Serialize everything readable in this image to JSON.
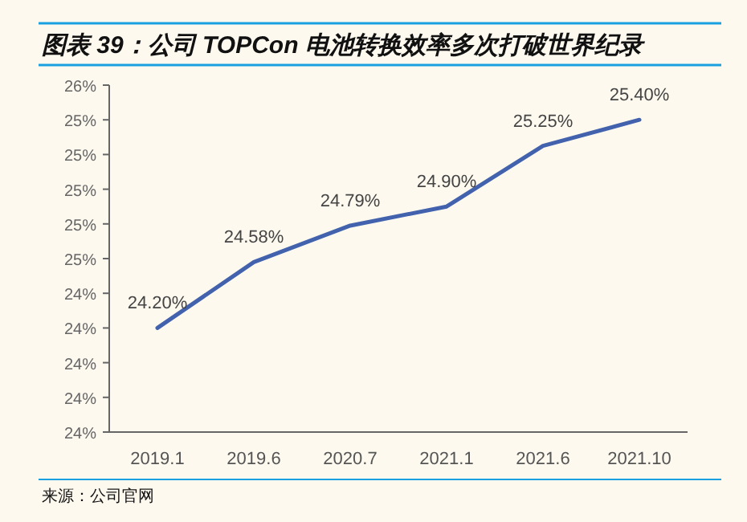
{
  "chart_data": {
    "type": "line",
    "title": "图表 39：公司 TOPCon 电池转换效率多次打破世界纪录",
    "categories": [
      "2019.1",
      "2019.6",
      "2020.7",
      "2021.1",
      "2021.6",
      "2021.10"
    ],
    "series": [
      {
        "color": "#4262ad",
        "values": [
          24.2,
          24.58,
          24.79,
          24.9,
          25.25,
          25.4
        ],
        "value_labels": [
          "24.20%",
          "24.58%",
          "24.79%",
          "24.90%",
          "25.25%",
          "25.40%"
        ]
      }
    ],
    "ylim": [
      23.6,
      25.6
    ],
    "yticks": [
      {
        "value": 23.6,
        "label": "24%"
      },
      {
        "value": 23.8,
        "label": "24%"
      },
      {
        "value": 24.0,
        "label": "24%"
      },
      {
        "value": 24.2,
        "label": "24%"
      },
      {
        "value": 24.4,
        "label": "24%"
      },
      {
        "value": 24.6,
        "label": "25%"
      },
      {
        "value": 24.8,
        "label": "25%"
      },
      {
        "value": 25.0,
        "label": "25%"
      },
      {
        "value": 25.2,
        "label": "25%"
      },
      {
        "value": 25.4,
        "label": "25%"
      },
      {
        "value": 25.6,
        "label": "26%"
      }
    ],
    "grid": false,
    "marker": "none",
    "line_style": "solid",
    "annotations": [
      "来源：公司官网"
    ]
  }
}
